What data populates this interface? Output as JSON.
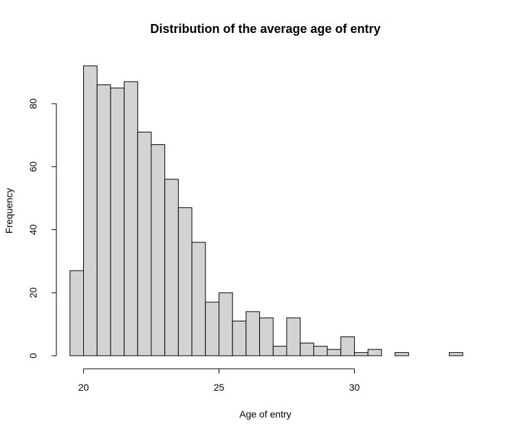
{
  "chart_data": {
    "type": "bar",
    "title": "Distribution of the average age of entry",
    "xlabel": "Age of entry",
    "ylabel": "Frequency",
    "bin_width": 0.5,
    "xlim": [
      19.5,
      34
    ],
    "ylim": [
      0,
      92
    ],
    "x_ticks": [
      20,
      25,
      30
    ],
    "y_ticks": [
      0,
      20,
      40,
      60,
      80
    ],
    "bins": [
      {
        "start": 19.5,
        "end": 20.0,
        "count": 27
      },
      {
        "start": 20.0,
        "end": 20.5,
        "count": 92
      },
      {
        "start": 20.5,
        "end": 21.0,
        "count": 86
      },
      {
        "start": 21.0,
        "end": 21.5,
        "count": 85
      },
      {
        "start": 21.5,
        "end": 22.0,
        "count": 87
      },
      {
        "start": 22.0,
        "end": 22.5,
        "count": 71
      },
      {
        "start": 22.5,
        "end": 23.0,
        "count": 67
      },
      {
        "start": 23.0,
        "end": 23.5,
        "count": 56
      },
      {
        "start": 23.5,
        "end": 24.0,
        "count": 47
      },
      {
        "start": 24.0,
        "end": 24.5,
        "count": 36
      },
      {
        "start": 24.5,
        "end": 25.0,
        "count": 17
      },
      {
        "start": 25.0,
        "end": 25.5,
        "count": 20
      },
      {
        "start": 25.5,
        "end": 26.0,
        "count": 11
      },
      {
        "start": 26.0,
        "end": 26.5,
        "count": 14
      },
      {
        "start": 26.5,
        "end": 27.0,
        "count": 12
      },
      {
        "start": 27.0,
        "end": 27.5,
        "count": 3
      },
      {
        "start": 27.5,
        "end": 28.0,
        "count": 12
      },
      {
        "start": 28.0,
        "end": 28.5,
        "count": 4
      },
      {
        "start": 28.5,
        "end": 29.0,
        "count": 3
      },
      {
        "start": 29.0,
        "end": 29.5,
        "count": 2
      },
      {
        "start": 29.5,
        "end": 30.0,
        "count": 6
      },
      {
        "start": 30.0,
        "end": 30.5,
        "count": 1
      },
      {
        "start": 30.5,
        "end": 31.0,
        "count": 2
      },
      {
        "start": 31.0,
        "end": 31.5,
        "count": 0
      },
      {
        "start": 31.5,
        "end": 32.0,
        "count": 1
      },
      {
        "start": 32.0,
        "end": 32.5,
        "count": 0
      },
      {
        "start": 32.5,
        "end": 33.0,
        "count": 0
      },
      {
        "start": 33.0,
        "end": 33.5,
        "count": 0
      },
      {
        "start": 33.5,
        "end": 34.0,
        "count": 1
      }
    ],
    "colors": {
      "bar_fill": "#d3d3d3",
      "bar_stroke": "#000000"
    },
    "grid": false,
    "legend": "none"
  }
}
